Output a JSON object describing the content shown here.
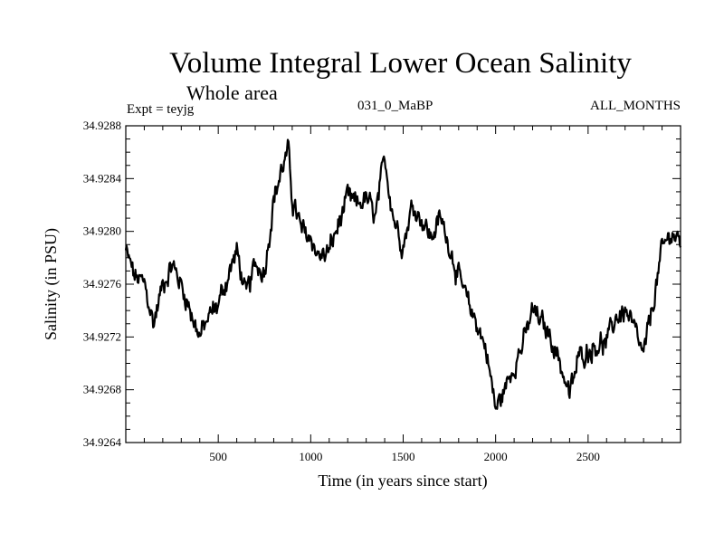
{
  "chart_data": {
    "type": "line",
    "title": "Volume Integral Lower Ocean Salinity",
    "subtitle": "Whole area",
    "expt_label": "Expt = teyjg",
    "run_label": "031_0_MaBP",
    "months_label": "ALL_MONTHS",
    "xlabel": "Time (in years since start)",
    "ylabel": "Salinity (in PSU)",
    "xlim": [
      0,
      3000
    ],
    "ylim": [
      34.9264,
      34.9288
    ],
    "xticks": [
      500,
      1000,
      1500,
      2000,
      2500
    ],
    "xtick_labels": [
      "500",
      "1000",
      "1500",
      "2000",
      "2500"
    ],
    "yticks": [
      34.9264,
      34.9268,
      34.9272,
      34.9276,
      34.928,
      34.9284,
      34.9288
    ],
    "ytick_labels": [
      "34.9264",
      "34.9268",
      "34.9272",
      "34.9276",
      "34.9280",
      "34.9284",
      "34.9288"
    ],
    "series": [
      {
        "name": "salinity",
        "color": "#000000",
        "x": [
          0,
          50,
          100,
          150,
          200,
          250,
          300,
          350,
          400,
          450,
          500,
          550,
          600,
          650,
          700,
          750,
          800,
          850,
          880,
          900,
          950,
          1000,
          1050,
          1100,
          1150,
          1200,
          1250,
          1300,
          1350,
          1400,
          1450,
          1500,
          1550,
          1600,
          1650,
          1700,
          1750,
          1800,
          1850,
          1900,
          1950,
          2000,
          2050,
          2100,
          2150,
          2200,
          2250,
          2300,
          2350,
          2400,
          2450,
          2500,
          2550,
          2600,
          2650,
          2700,
          2750,
          2800,
          2850,
          2900,
          2950,
          3000
        ],
        "values": [
          34.92785,
          34.92765,
          34.9276,
          34.9273,
          34.9276,
          34.92775,
          34.9276,
          34.9274,
          34.9272,
          34.92735,
          34.92745,
          34.92765,
          34.92785,
          34.9275,
          34.92775,
          34.9277,
          34.92825,
          34.9285,
          34.9286,
          34.92825,
          34.928,
          34.92795,
          34.9278,
          34.92785,
          34.92805,
          34.92825,
          34.9282,
          34.92825,
          34.9281,
          34.92855,
          34.9281,
          34.9279,
          34.9282,
          34.9281,
          34.92795,
          34.9281,
          34.9279,
          34.92765,
          34.92745,
          34.9273,
          34.9271,
          34.92665,
          34.9268,
          34.927,
          34.92715,
          34.9274,
          34.9273,
          34.9272,
          34.927,
          34.92675,
          34.92705,
          34.9271,
          34.92715,
          34.92715,
          34.92735,
          34.9274,
          34.92725,
          34.92705,
          34.92745,
          34.92785,
          34.928,
          34.9279
        ]
      }
    ]
  }
}
